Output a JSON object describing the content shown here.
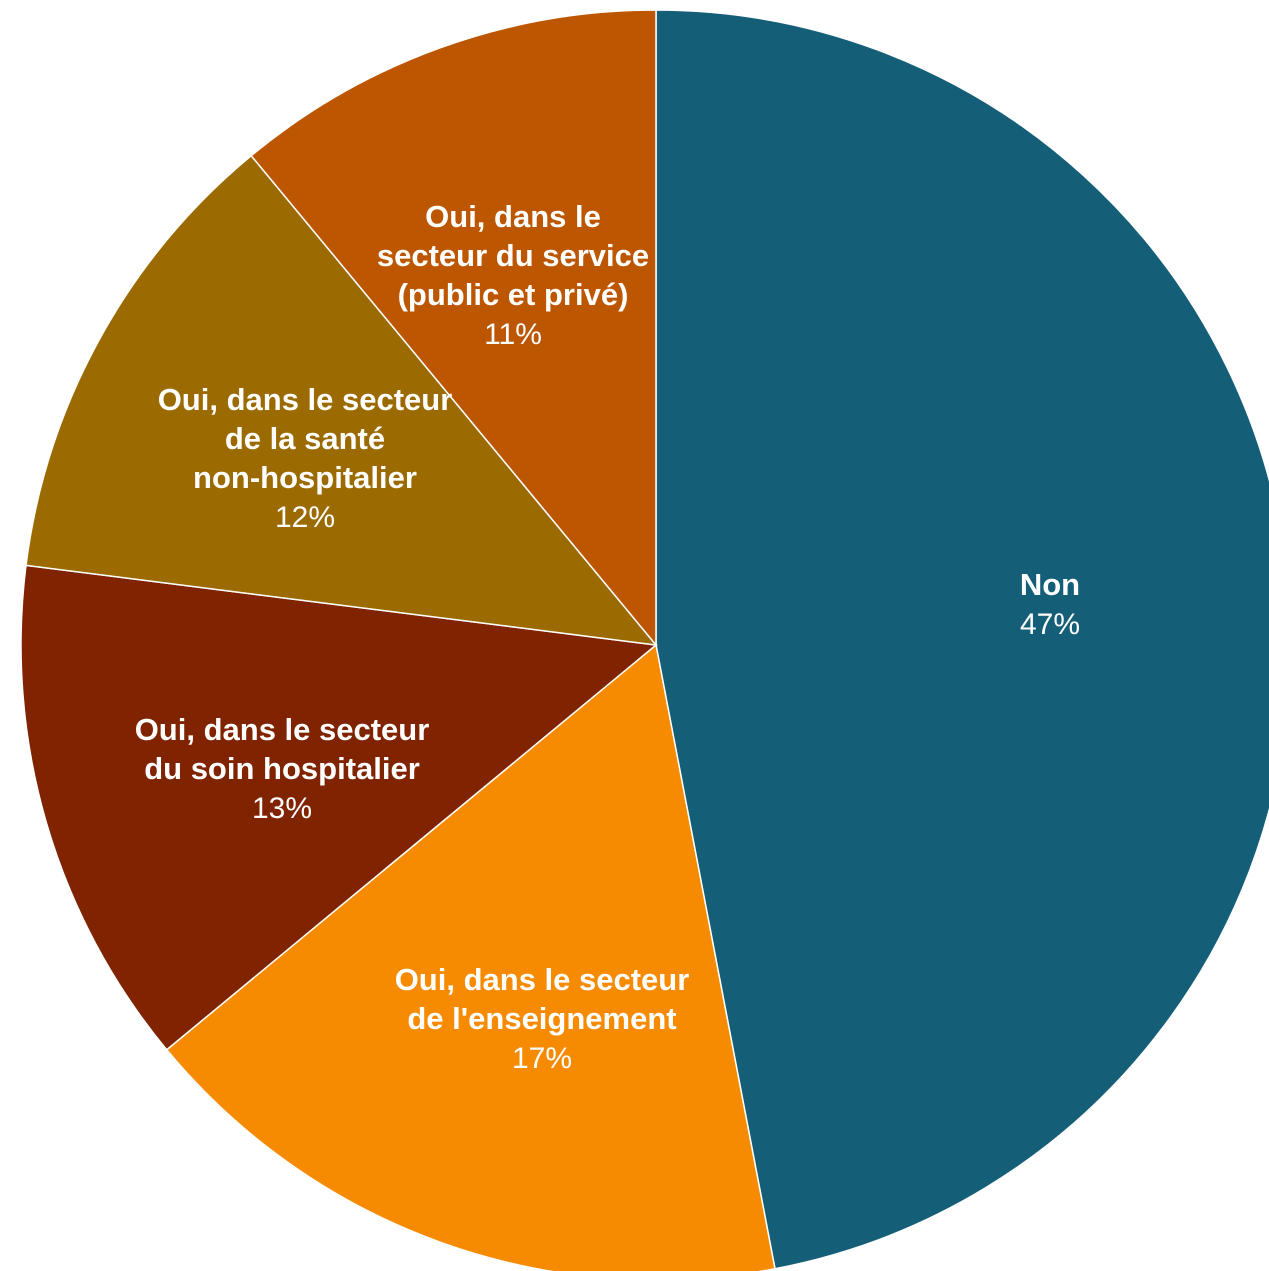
{
  "chart_data": {
    "type": "pie",
    "title": "",
    "slices": [
      {
        "label": "Non",
        "label_lines": [
          "Non"
        ],
        "value": 47,
        "value_label": "47%",
        "color": "#155e78"
      },
      {
        "label": "Oui, dans le secteur de l'enseignement",
        "label_lines": [
          "Oui, dans le secteur",
          "de l'enseignement"
        ],
        "value": 17,
        "value_label": "17%",
        "color": "#f68a00"
      },
      {
        "label": "Oui, dans le secteur du soin hospitalier",
        "label_lines": [
          "Oui, dans le secteur",
          "du soin hospitalier"
        ],
        "value": 13,
        "value_label": "13%",
        "color": "#7f2300"
      },
      {
        "label": "Oui, dans le secteur de la santé non-hospitalier",
        "label_lines": [
          "Oui, dans le secteur",
          "de la santé",
          "non-hospitalier"
        ],
        "value": 12,
        "value_label": "12%",
        "color": "#9b6a00"
      },
      {
        "label": "Oui, dans le secteur du service (public et privé)",
        "label_lines": [
          "Oui, dans le",
          "secteur du service",
          "(public et privé)"
        ],
        "value": 11,
        "value_label": "11%",
        "color": "#bc5600"
      }
    ],
    "start_angle_deg": 0,
    "direction": "clockwise",
    "legend": "none",
    "label_color": "#ffffff"
  }
}
